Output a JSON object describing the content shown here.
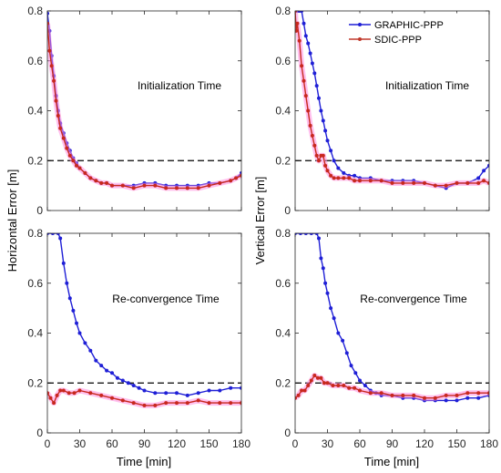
{
  "chart_data": {
    "type": "line",
    "ylabel_left": "Horizontal Error [m]",
    "ylabel_right": "Vertical Error [m]",
    "xlabel": "Time [min]",
    "xlim": [
      0,
      180
    ],
    "ylim": [
      0,
      0.8
    ],
    "xticks": [
      "0",
      "30",
      "60",
      "90",
      "120",
      "150",
      "180"
    ],
    "yticks": [
      "0",
      "0.2",
      "0.4",
      "0.6",
      "0.8"
    ],
    "threshold": 0.2,
    "legend": {
      "position": "top-right of top-right panel",
      "entries": [
        {
          "name": "GRAPHIC-PPP",
          "color": "#1f1fd6"
        },
        {
          "name": "SDIC-PPP",
          "color": "#c0392b"
        }
      ]
    },
    "series_colors": {
      "GRAPHIC-PPP": "#1f1fd6",
      "SDIC-PPP": "#c8281e",
      "halo": "#ff8ce0"
    },
    "panels": [
      {
        "id": "horizontal-initialization",
        "annotation": "Initialization Time",
        "show_x_ticks": false,
        "series": [
          {
            "name": "GRAPHIC-PPP",
            "x": [
              0,
              2,
              4,
              6,
              8,
              10,
              12,
              15,
              18,
              21,
              24,
              27,
              30,
              35,
              40,
              45,
              50,
              55,
              60,
              70,
              80,
              90,
              100,
              110,
              120,
              130,
              140,
              150,
              160,
              170,
              175,
              180
            ],
            "y": [
              0.79,
              0.72,
              0.62,
              0.54,
              0.46,
              0.4,
              0.35,
              0.31,
              0.27,
              0.24,
              0.21,
              0.19,
              0.17,
              0.15,
              0.13,
              0.12,
              0.11,
              0.11,
              0.1,
              0.1,
              0.1,
              0.11,
              0.11,
              0.1,
              0.1,
              0.1,
              0.1,
              0.11,
              0.11,
              0.12,
              0.13,
              0.15
            ]
          },
          {
            "name": "SDIC-PPP",
            "x": [
              0,
              2,
              4,
              6,
              8,
              10,
              12,
              15,
              18,
              21,
              24,
              27,
              30,
              35,
              40,
              45,
              50,
              55,
              60,
              70,
              80,
              90,
              100,
              110,
              120,
              130,
              140,
              150,
              160,
              170,
              175,
              180
            ],
            "y": [
              0.75,
              0.64,
              0.58,
              0.52,
              0.44,
              0.38,
              0.33,
              0.29,
              0.25,
              0.22,
              0.2,
              0.18,
              0.17,
              0.15,
              0.13,
              0.12,
              0.11,
              0.11,
              0.1,
              0.1,
              0.09,
              0.1,
              0.1,
              0.09,
              0.09,
              0.09,
              0.09,
              0.1,
              0.11,
              0.12,
              0.13,
              0.14
            ]
          }
        ]
      },
      {
        "id": "vertical-initialization",
        "annotation": "Initialization Time",
        "show_x_ticks": false,
        "show_legend": true,
        "series": [
          {
            "name": "GRAPHIC-PPP",
            "x": [
              0,
              2,
              4,
              6,
              8,
              10,
              12,
              14,
              16,
              18,
              20,
              22,
              24,
              26,
              28,
              30,
              33,
              36,
              40,
              45,
              50,
              55,
              60,
              70,
              80,
              90,
              100,
              110,
              120,
              130,
              140,
              150,
              160,
              170,
              175,
              180
            ],
            "y": [
              0.8,
              0.8,
              0.8,
              0.8,
              0.75,
              0.7,
              0.67,
              0.63,
              0.59,
              0.55,
              0.5,
              0.45,
              0.4,
              0.36,
              0.32,
              0.28,
              0.24,
              0.2,
              0.17,
              0.15,
              0.14,
              0.14,
              0.13,
              0.13,
              0.12,
              0.12,
              0.12,
              0.12,
              0.11,
              0.1,
              0.09,
              0.11,
              0.11,
              0.13,
              0.16,
              0.18
            ]
          },
          {
            "name": "SDIC-PPP",
            "x": [
              0,
              1,
              2,
              4,
              6,
              8,
              10,
              12,
              14,
              16,
              18,
              20,
              22,
              24,
              26,
              28,
              30,
              33,
              36,
              40,
              45,
              50,
              55,
              60,
              70,
              80,
              90,
              100,
              110,
              120,
              130,
              140,
              150,
              160,
              170,
              175,
              180
            ],
            "y": [
              0.8,
              0.72,
              0.75,
              0.68,
              0.58,
              0.52,
              0.46,
              0.4,
              0.34,
              0.3,
              0.26,
              0.22,
              0.2,
              0.22,
              0.22,
              0.18,
              0.16,
              0.14,
              0.13,
              0.13,
              0.13,
              0.13,
              0.12,
              0.12,
              0.12,
              0.12,
              0.11,
              0.11,
              0.11,
              0.11,
              0.1,
              0.1,
              0.11,
              0.11,
              0.11,
              0.12,
              0.11
            ]
          }
        ]
      },
      {
        "id": "horizontal-reconvergence",
        "annotation": "Re-convergence Time",
        "show_x_ticks": true,
        "series": [
          {
            "name": "GRAPHIC-PPP",
            "x": [
              0,
              5,
              10,
              12,
              15,
              18,
              21,
              24,
              27,
              30,
              35,
              40,
              45,
              50,
              55,
              60,
              65,
              70,
              75,
              80,
              85,
              90,
              100,
              110,
              120,
              130,
              140,
              150,
              160,
              170,
              180
            ],
            "y": [
              0.8,
              0.8,
              0.8,
              0.78,
              0.68,
              0.6,
              0.54,
              0.49,
              0.44,
              0.4,
              0.36,
              0.33,
              0.29,
              0.27,
              0.25,
              0.24,
              0.22,
              0.21,
              0.2,
              0.19,
              0.18,
              0.17,
              0.16,
              0.16,
              0.16,
              0.15,
              0.16,
              0.17,
              0.17,
              0.18,
              0.18
            ]
          },
          {
            "name": "SDIC-PPP",
            "x": [
              0,
              3,
              6,
              9,
              12,
              15,
              20,
              25,
              30,
              40,
              50,
              60,
              70,
              80,
              90,
              100,
              110,
              120,
              130,
              140,
              150,
              160,
              170,
              180
            ],
            "y": [
              0.16,
              0.14,
              0.12,
              0.15,
              0.17,
              0.17,
              0.16,
              0.16,
              0.17,
              0.16,
              0.15,
              0.14,
              0.13,
              0.12,
              0.11,
              0.11,
              0.12,
              0.12,
              0.12,
              0.13,
              0.12,
              0.12,
              0.12,
              0.12
            ]
          }
        ]
      },
      {
        "id": "vertical-reconvergence",
        "annotation": "Re-convergence Time",
        "show_x_ticks": true,
        "series": [
          {
            "name": "GRAPHIC-PPP",
            "x": [
              0,
              5,
              10,
              15,
              20,
              22,
              24,
              26,
              28,
              30,
              33,
              36,
              40,
              44,
              48,
              52,
              56,
              60,
              65,
              70,
              75,
              80,
              90,
              100,
              110,
              120,
              130,
              140,
              150,
              160,
              170,
              180
            ],
            "y": [
              0.8,
              0.8,
              0.8,
              0.8,
              0.8,
              0.78,
              0.7,
              0.66,
              0.6,
              0.56,
              0.5,
              0.46,
              0.4,
              0.37,
              0.32,
              0.27,
              0.24,
              0.21,
              0.19,
              0.17,
              0.16,
              0.15,
              0.15,
              0.14,
              0.14,
              0.13,
              0.13,
              0.13,
              0.13,
              0.14,
              0.14,
              0.15
            ]
          },
          {
            "name": "SDIC-PPP",
            "x": [
              0,
              3,
              6,
              9,
              12,
              15,
              18,
              21,
              24,
              27,
              30,
              35,
              40,
              45,
              50,
              55,
              60,
              70,
              80,
              90,
              100,
              110,
              120,
              130,
              140,
              150,
              160,
              170,
              180
            ],
            "y": [
              0.14,
              0.15,
              0.17,
              0.17,
              0.19,
              0.21,
              0.23,
              0.22,
              0.22,
              0.2,
              0.2,
              0.19,
              0.19,
              0.19,
              0.18,
              0.18,
              0.17,
              0.16,
              0.16,
              0.15,
              0.15,
              0.15,
              0.14,
              0.14,
              0.15,
              0.15,
              0.16,
              0.16,
              0.16
            ]
          }
        ]
      }
    ]
  }
}
